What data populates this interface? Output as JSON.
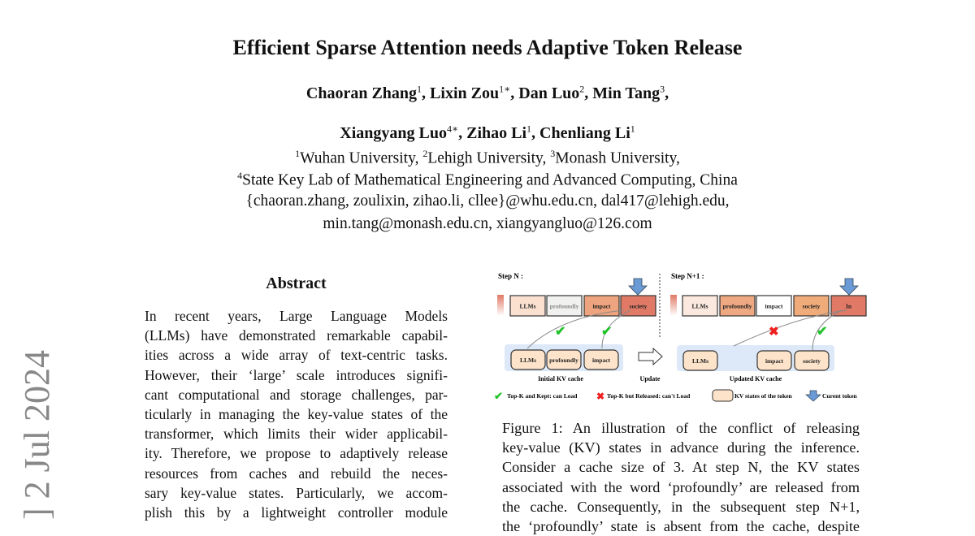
{
  "title": "Efficient Sparse Attention needs Adaptive Token Release",
  "authors": {
    "line1": [
      {
        "name": "Chaoran Zhang",
        "sup": "1"
      },
      {
        "name": "Lixin Zou",
        "sup": "1∗"
      },
      {
        "name": "Dan Luo",
        "sup": "2"
      },
      {
        "name": "Min Tang",
        "sup": "3"
      }
    ],
    "line2": [
      {
        "name": "Xiangyang Luo",
        "sup": "4∗"
      },
      {
        "name": "Zihao Li",
        "sup": "1"
      },
      {
        "name": "Chenliang Li",
        "sup": "1"
      }
    ]
  },
  "affiliations": {
    "line1": [
      {
        "sup": "1",
        "text": "Wuhan University, "
      },
      {
        "sup": "2",
        "text": "Lehigh University, "
      },
      {
        "sup": "3",
        "text": "Monash University,"
      }
    ],
    "line2": {
      "sup": "4",
      "text": "State Key Lab of Mathematical Engineering and Advanced Computing, China"
    },
    "emails": [
      "{chaoran.zhang, zoulixin, zihao.li, cllee}@whu.edu.cn, dal417@lehigh.edu,",
      "min.tang@monash.edu.cn, xiangyangluo@126.com"
    ]
  },
  "arxiv_stamp": "] 2 Jul 2024",
  "abstract": {
    "heading": "Abstract",
    "lines": [
      "In recent years, Large Language Models",
      "(LLMs) have demonstrated remarkable capabil-",
      "ities across a wide array of text-centric tasks.",
      "However, their ‘large’ scale introduces signifi-",
      "cant computational and storage challenges, par-",
      "ticularly in managing the key-value states of the",
      "transformer, which limits their wider applicabil-",
      "ity. Therefore, we propose to adaptively release",
      "resources from caches and rebuild the neces-",
      "sary key-value states. Particularly, we accom-",
      "plish this by a lightweight controller module"
    ]
  },
  "figure": {
    "step_n_label": "Step N :",
    "step_n1_label": "Step N+1 :",
    "step_n_tokens": [
      "LLMs",
      "profoundly",
      "impact",
      "society"
    ],
    "step_n_colors": [
      "#fbe0d0",
      "#f1f1ef",
      "#eea47e",
      "#e07a66"
    ],
    "step_n1_tokens": [
      "LLMs",
      "profoundly",
      "impact",
      "society",
      "In"
    ],
    "step_n1_colors": [
      "#fbe8de",
      "#eea882",
      "#ffffff",
      "#efab7a",
      "#e07a66"
    ],
    "initial_cache": [
      "LLMs",
      "profoundly",
      "impact"
    ],
    "updated_cache": [
      "LLMs",
      "impact",
      "society"
    ],
    "initial_cache_label": "Initial KV cache",
    "update_label": "Update",
    "updated_cache_label": "Updated KV cache",
    "legend": {
      "kept": "Top-K and Kept: can Load",
      "released": "Top-K but Released: can't Load",
      "kv_states": "KV states of the token",
      "current": "Curent token"
    },
    "colors": {
      "cache_bg": "#dde9f8",
      "kv_box": "#fde3ca",
      "check": "#22c22a",
      "cross": "#ee2020",
      "arrow": "#6b9bd6"
    },
    "caption_lines": [
      "Figure 1:  An illustration of the conflict of releasing",
      "key-value (KV) states in advance during the inference.",
      "Consider a cache size of 3.  At step N, the KV states",
      "associated with the word ‘profoundly’ are released from",
      "the cache.  Consequently, in the subsequent step N+1,",
      "the ‘profoundly’ state is absent from the cache, despite"
    ]
  }
}
